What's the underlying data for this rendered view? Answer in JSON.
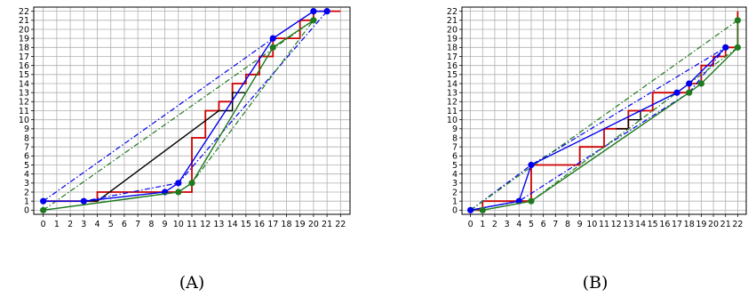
{
  "colors": {
    "grid": "#b0b0b0",
    "red_step": "#cc0000",
    "black_step": "#000000",
    "blue": "#0000ee",
    "green": "#1e7a1e"
  },
  "chart_data": [
    {
      "type": "line",
      "caption": "(A)",
      "xlim": [
        0,
        22
      ],
      "ylim": [
        0,
        22
      ],
      "x_ticks": [
        "0",
        "1",
        "2",
        "3",
        "4",
        "5",
        "6",
        "7",
        "8",
        "9",
        "10",
        "11",
        "12",
        "13",
        "14",
        "15",
        "16",
        "17",
        "18",
        "19",
        "20",
        "21",
        "22"
      ],
      "y_ticks": [
        "0",
        "1",
        "2",
        "3",
        "4",
        "5",
        "6",
        "7",
        "8",
        "9",
        "10",
        "11",
        "12",
        "13",
        "14",
        "15",
        "16",
        "17",
        "18",
        "19",
        "20",
        "21",
        "22"
      ],
      "grid": true,
      "series": [
        {
          "style": "step",
          "color": "red",
          "points": [
            [
              0,
              1
            ],
            [
              4,
              1
            ],
            [
              4,
              2
            ],
            [
              9,
              2
            ],
            [
              9,
              2
            ],
            [
              11,
              2
            ],
            [
              11,
              8
            ],
            [
              12,
              8
            ],
            [
              12,
              11
            ],
            [
              13,
              11
            ],
            [
              13,
              12
            ],
            [
              14,
              12
            ],
            [
              14,
              14
            ],
            [
              15,
              14
            ],
            [
              15,
              15
            ],
            [
              16,
              15
            ],
            [
              16,
              17
            ],
            [
              17,
              17
            ],
            [
              17,
              19
            ],
            [
              18,
              19
            ],
            [
              19,
              19
            ],
            [
              19,
              21
            ],
            [
              20,
              21
            ],
            [
              20,
              22
            ],
            [
              22,
              22
            ]
          ]
        },
        {
          "style": "step",
          "color": "black",
          "points": [
            [
              0,
              1
            ],
            [
              4,
              1
            ],
            [
              13,
              11
            ],
            [
              14,
              11
            ],
            [
              14,
              13
            ],
            [
              15,
              13
            ]
          ]
        },
        {
          "style": "dashdot",
          "color": "blue",
          "points": [
            [
              0,
              1
            ],
            [
              17,
              19
            ],
            [
              20,
              22
            ],
            [
              21,
              22
            ],
            [
              10,
              3
            ],
            [
              3,
              1
            ],
            [
              0,
              1
            ]
          ]
        },
        {
          "style": "dashdot",
          "color": "green",
          "points": [
            [
              0,
              0
            ],
            [
              20,
              21
            ],
            [
              11,
              3
            ],
            [
              10,
              2
            ],
            [
              0,
              0
            ]
          ]
        },
        {
          "style": "line-markers",
          "color": "blue",
          "points": [
            [
              0,
              1
            ],
            [
              3,
              1
            ],
            [
              9,
              2
            ],
            [
              10,
              3
            ],
            [
              17,
              19
            ],
            [
              20,
              22
            ],
            [
              21,
              22
            ]
          ]
        },
        {
          "style": "line-markers",
          "color": "green",
          "points": [
            [
              0,
              0
            ],
            [
              10,
              2
            ],
            [
              11,
              3
            ],
            [
              17,
              18
            ],
            [
              20,
              21
            ]
          ]
        }
      ]
    },
    {
      "type": "line",
      "caption": "(B)",
      "xlim": [
        0,
        22
      ],
      "ylim": [
        0,
        22
      ],
      "x_ticks": [
        "0",
        "1",
        "2",
        "3",
        "4",
        "5",
        "6",
        "7",
        "8",
        "9",
        "10",
        "11",
        "12",
        "13",
        "14",
        "15",
        "16",
        "17",
        "18",
        "19",
        "20",
        "21",
        "22"
      ],
      "y_ticks": [
        "0",
        "1",
        "2",
        "3",
        "4",
        "5",
        "6",
        "7",
        "8",
        "9",
        "10",
        "11",
        "12",
        "13",
        "14",
        "15",
        "16",
        "17",
        "18",
        "19",
        "20",
        "21",
        "22"
      ],
      "grid": true,
      "series": [
        {
          "style": "step",
          "color": "red",
          "points": [
            [
              0,
              0
            ],
            [
              1,
              0
            ],
            [
              1,
              1
            ],
            [
              4,
              1
            ],
            [
              5,
              1
            ],
            [
              5,
              5
            ],
            [
              9,
              5
            ],
            [
              9,
              7
            ],
            [
              11,
              7
            ],
            [
              11,
              9
            ],
            [
              13,
              9
            ],
            [
              13,
              11
            ],
            [
              14,
              11
            ],
            [
              15,
              11
            ],
            [
              15,
              13
            ],
            [
              17,
              13
            ],
            [
              18,
              13
            ],
            [
              18,
              14
            ],
            [
              19,
              14
            ],
            [
              19,
              16
            ],
            [
              20,
              16
            ],
            [
              20,
              17
            ],
            [
              21,
              17
            ],
            [
              21,
              18
            ],
            [
              22,
              18
            ],
            [
              22,
              22
            ]
          ]
        },
        {
          "style": "step",
          "color": "black",
          "points": [
            [
              12,
              9
            ],
            [
              13,
              9
            ],
            [
              13,
              10
            ],
            [
              14,
              10
            ],
            [
              14,
              11
            ]
          ]
        },
        {
          "style": "dashdot",
          "color": "blue",
          "points": [
            [
              0,
              0
            ],
            [
              5,
              5
            ],
            [
              21,
              18
            ],
            [
              18,
              13
            ],
            [
              4,
              1
            ],
            [
              0,
              0
            ]
          ]
        },
        {
          "style": "dashdot",
          "color": "green",
          "points": [
            [
              0,
              0
            ],
            [
              22,
              21
            ],
            [
              22,
              18
            ],
            [
              5,
              1
            ],
            [
              1,
              0
            ],
            [
              0,
              0
            ]
          ]
        },
        {
          "style": "line-markers",
          "color": "blue",
          "points": [
            [
              0,
              0
            ],
            [
              4,
              1
            ],
            [
              5,
              5
            ],
            [
              17,
              13
            ],
            [
              18,
              14
            ],
            [
              21,
              18
            ]
          ]
        },
        {
          "style": "line-markers",
          "color": "green",
          "points": [
            [
              1,
              0
            ],
            [
              5,
              1
            ],
            [
              18,
              13
            ],
            [
              19,
              14
            ],
            [
              22,
              18
            ],
            [
              22,
              21
            ]
          ]
        }
      ]
    }
  ]
}
